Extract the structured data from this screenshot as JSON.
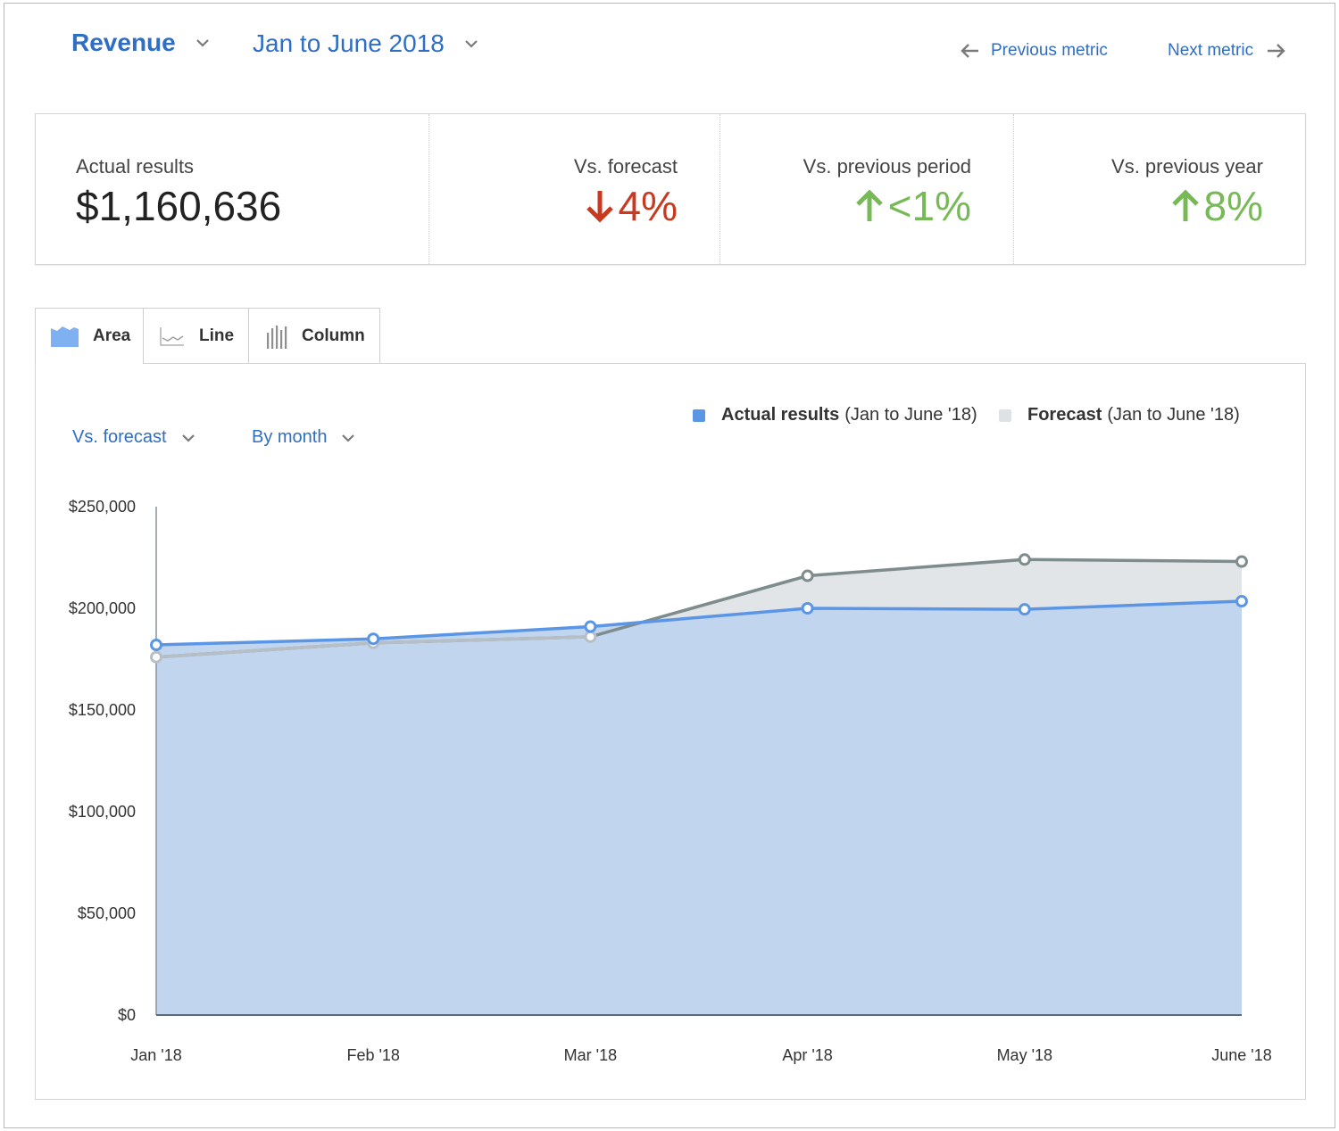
{
  "header": {
    "metric": "Revenue",
    "period": "Jan to June 2018",
    "prev_label": "Previous metric",
    "next_label": "Next metric"
  },
  "summary": {
    "actual_label": "Actual results",
    "actual_value": "$1,160,636",
    "forecast_label": "Vs. forecast",
    "forecast_value": "4%",
    "forecast_direction": "down",
    "prev_period_label": "Vs. previous period",
    "prev_period_value": "<1%",
    "prev_period_direction": "up",
    "prev_year_label": "Vs. previous year",
    "prev_year_value": "8%",
    "prev_year_direction": "up"
  },
  "tabs": [
    {
      "label": "Area",
      "icon": "area-chart-icon",
      "active": true
    },
    {
      "label": "Line",
      "icon": "line-chart-icon",
      "active": false
    },
    {
      "label": "Column",
      "icon": "column-chart-icon",
      "active": false
    }
  ],
  "controls": {
    "compare": "Vs. forecast",
    "group": "By month"
  },
  "colors": {
    "accent": "#2f6ec4",
    "actual": "#5b96e6",
    "actual_fill": "#c2d5ee",
    "forecast_line": "#7f8c8d",
    "forecast_fill": "#e1e5e8",
    "negative": "#c9391f",
    "positive": "#78b957"
  },
  "chart_data": {
    "type": "area",
    "categories": [
      "Jan '18",
      "Feb '18",
      "Mar '18",
      "Apr '18",
      "May '18",
      "June '18"
    ],
    "series": [
      {
        "name": "Actual results",
        "suffix": "(Jan to June '18)",
        "values": [
          182000,
          185000,
          191000,
          200000,
          199500,
          203500
        ]
      },
      {
        "name": "Forecast",
        "suffix": "(Jan to June '18)",
        "values": [
          176000,
          183000,
          186000,
          216000,
          224000,
          223000
        ]
      }
    ],
    "ylim": [
      0,
      250000
    ],
    "yticks": [
      0,
      50000,
      100000,
      150000,
      200000,
      250000
    ],
    "ytick_labels": [
      "$0",
      "$50,000",
      "$100,000",
      "$150,000",
      "$200,000",
      "$250,000"
    ],
    "legend_position": "top-right",
    "grid": false
  }
}
